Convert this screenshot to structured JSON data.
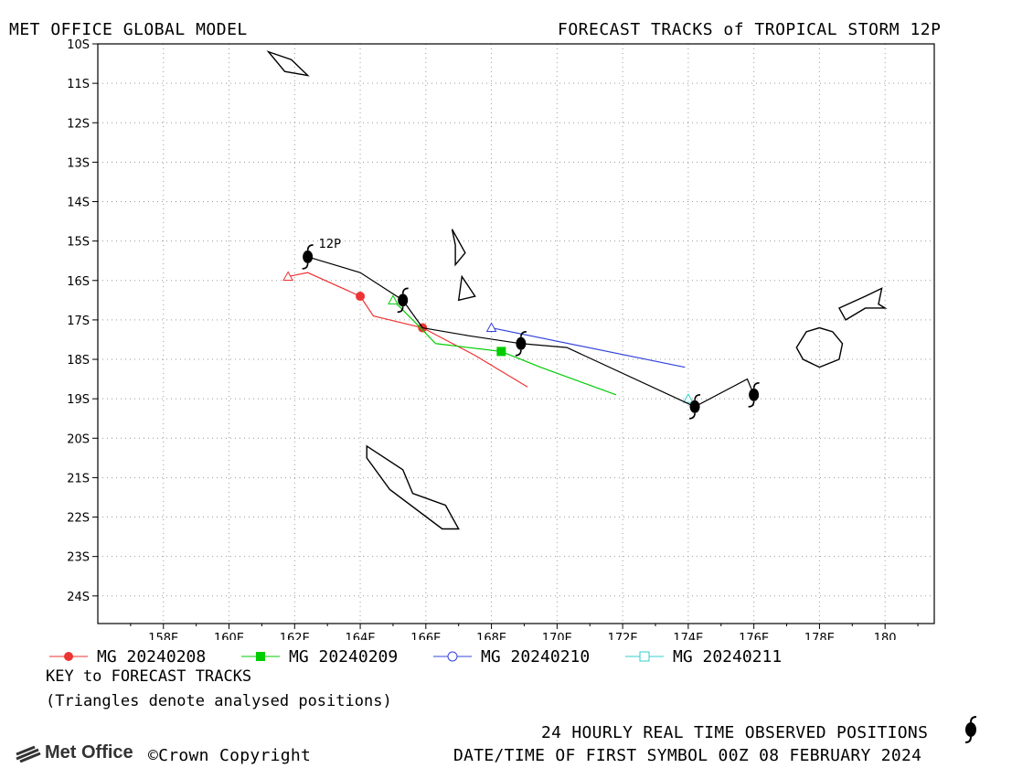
{
  "header": {
    "left": "MET OFFICE GLOBAL MODEL",
    "right": "FORECAST TRACKS of TROPICAL STORM 12P"
  },
  "chart_data": {
    "type": "line",
    "title": "FORECAST TRACKS of TROPICAL STORM 12P",
    "xlim": [
      156.0,
      181.5
    ],
    "ylim": [
      -24.7,
      -10.0
    ],
    "x_ticks": [
      158,
      160,
      162,
      164,
      166,
      168,
      170,
      172,
      174,
      176,
      178,
      180
    ],
    "x_tick_labels": [
      "158E",
      "160E",
      "162E",
      "164E",
      "166E",
      "168E",
      "170E",
      "172E",
      "174E",
      "176E",
      "178E",
      "180"
    ],
    "y_ticks": [
      -10,
      -11,
      -12,
      -13,
      -14,
      -15,
      -16,
      -17,
      -18,
      -19,
      -20,
      -21,
      -22,
      -23,
      -24
    ],
    "y_tick_labels": [
      "10S",
      "11S",
      "12S",
      "13S",
      "14S",
      "15S",
      "16S",
      "17S",
      "18S",
      "19S",
      "20S",
      "21S",
      "22S",
      "23S",
      "24S"
    ],
    "grid": true,
    "storm_label": "12P",
    "observed_track": {
      "points": [
        [
          162.4,
          -15.4
        ],
        [
          164.0,
          -15.8
        ],
        [
          165.3,
          -16.5
        ],
        [
          165.9,
          -17.2
        ],
        [
          167.3,
          -17.4
        ],
        [
          168.9,
          -17.6
        ],
        [
          170.3,
          -17.7
        ],
        [
          174.2,
          -19.2
        ],
        [
          175.8,
          -18.5
        ],
        [
          176.0,
          -18.9
        ]
      ],
      "symbols": [
        [
          162.4,
          -15.4
        ],
        [
          165.3,
          -16.5
        ],
        [
          168.9,
          -17.6
        ],
        [
          174.2,
          -19.2
        ],
        [
          176.0,
          -18.9
        ]
      ]
    },
    "series": [
      {
        "name": "MG 20240208",
        "color": "#ee3333",
        "marker": "circle",
        "analysed": [
          161.8,
          -15.9
        ],
        "points": [
          [
            161.8,
            -15.9
          ],
          [
            162.4,
            -15.8
          ],
          [
            164.0,
            -16.4
          ],
          [
            164.4,
            -16.9
          ],
          [
            165.9,
            -17.2
          ],
          [
            167.5,
            -17.9
          ],
          [
            169.1,
            -18.7
          ]
        ],
        "symbols": [
          [
            164.0,
            -16.4
          ],
          [
            165.9,
            -17.2
          ]
        ]
      },
      {
        "name": "MG 20240209",
        "color": "#00cc00",
        "marker": "square",
        "analysed": [
          165.0,
          -16.5
        ],
        "points": [
          [
            165.0,
            -16.5
          ],
          [
            165.6,
            -17.0
          ],
          [
            166.3,
            -17.6
          ],
          [
            168.3,
            -17.8
          ],
          [
            169.5,
            -18.2
          ],
          [
            171.8,
            -18.9
          ]
        ],
        "symbols": [
          [
            168.3,
            -17.8
          ]
        ]
      },
      {
        "name": "MG 20240210",
        "color": "#3344dd",
        "marker": "open-circle",
        "analysed": [
          168.0,
          -17.2
        ],
        "points": [
          [
            168.0,
            -17.2
          ],
          [
            173.9,
            -18.2
          ]
        ],
        "symbols": []
      },
      {
        "name": "MG 20240211",
        "color": "#33cccc",
        "marker": "open-square",
        "analysed": [
          174.0,
          -19.0
        ],
        "points": [
          [
            174.0,
            -19.0
          ]
        ],
        "symbols": []
      }
    ],
    "islands": [
      [
        [
          161.2,
          -10.2
        ],
        [
          161.9,
          -10.4
        ],
        [
          162.4,
          -10.8
        ],
        [
          161.7,
          -10.7
        ]
      ],
      [
        [
          166.8,
          -14.7
        ],
        [
          167.2,
          -15.3
        ],
        [
          166.9,
          -15.6
        ],
        [
          166.9,
          -15.1
        ]
      ],
      [
        [
          167.1,
          -15.9
        ],
        [
          167.5,
          -16.4
        ],
        [
          167.0,
          -16.5
        ]
      ],
      [
        [
          164.2,
          -20.2
        ],
        [
          165.3,
          -20.8
        ],
        [
          165.6,
          -21.4
        ],
        [
          166.6,
          -21.7
        ],
        [
          167.0,
          -22.3
        ],
        [
          166.5,
          -22.3
        ],
        [
          164.9,
          -21.3
        ],
        [
          164.2,
          -20.5
        ]
      ],
      [
        [
          178.4,
          -17.3
        ],
        [
          178.7,
          -17.6
        ],
        [
          178.6,
          -18.0
        ],
        [
          178.0,
          -18.2
        ],
        [
          177.5,
          -18.0
        ],
        [
          177.3,
          -17.7
        ],
        [
          177.6,
          -17.3
        ],
        [
          178.0,
          -17.2
        ]
      ],
      [
        [
          178.6,
          -16.7
        ],
        [
          179.4,
          -16.4
        ],
        [
          179.9,
          -16.2
        ],
        [
          179.8,
          -16.6
        ],
        [
          180.0,
          -16.7
        ],
        [
          179.4,
          -16.7
        ],
        [
          178.8,
          -17.0
        ]
      ]
    ]
  },
  "legend": [
    {
      "label": "MG 20240208",
      "color": "#ee3333",
      "marker": "circle"
    },
    {
      "label": "MG 20240209",
      "color": "#00cc00",
      "marker": "square"
    },
    {
      "label": "MG 20240210",
      "color": "#3344dd",
      "marker": "open-circle"
    },
    {
      "label": "MG 20240211",
      "color": "#33cccc",
      "marker": "open-square"
    }
  ],
  "key": {
    "title": "KEY to FORECAST TRACKS",
    "note": "(Triangles denote analysed positions)"
  },
  "footer": {
    "observed": "24 HOURLY REAL TIME OBSERVED POSITIONS",
    "datetime": "DATE/TIME OF FIRST SYMBOL 00Z 08 FEBRUARY 2024",
    "logo": "Met Office",
    "copyright": "©Crown Copyright"
  }
}
